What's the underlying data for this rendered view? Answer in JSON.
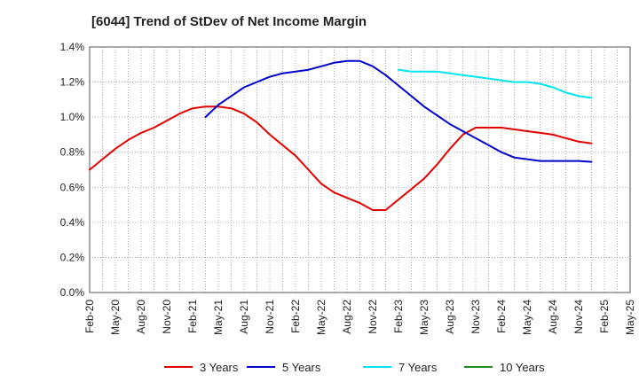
{
  "chart_data": {
    "type": "line",
    "title": "[6044]  Trend of StDev of Net Income Margin",
    "xlabel": "",
    "ylabel": "",
    "ylim": [
      0,
      1.4
    ],
    "yticks": [
      "0.0%",
      "0.2%",
      "0.4%",
      "0.6%",
      "0.8%",
      "1.0%",
      "1.2%",
      "1.4%"
    ],
    "x_tick_labels": [
      "Feb-20",
      "May-20",
      "Aug-20",
      "Nov-20",
      "Feb-21",
      "May-21",
      "Aug-21",
      "Nov-21",
      "Feb-22",
      "May-22",
      "Aug-22",
      "Nov-22",
      "Feb-23",
      "May-23",
      "Aug-23",
      "Nov-23",
      "Feb-24",
      "May-24",
      "Aug-24",
      "Nov-24",
      "Feb-25",
      "May-25"
    ],
    "grid": true,
    "legend_position": "bottom",
    "series": [
      {
        "name": "3 Years",
        "color": "#e00000",
        "values": [
          0.7,
          0.76,
          0.82,
          0.87,
          0.91,
          0.94,
          0.98,
          1.02,
          1.05,
          1.06,
          1.06,
          1.05,
          1.02,
          0.97,
          0.9,
          0.84,
          0.78,
          0.7,
          0.62,
          0.57,
          0.54,
          0.51,
          0.47,
          0.47,
          0.53,
          0.59,
          0.65,
          0.73,
          0.82,
          0.9,
          0.94,
          0.94,
          0.94,
          0.93,
          0.92,
          0.91,
          0.9,
          0.88,
          0.86,
          0.85,
          null,
          null,
          null
        ]
      },
      {
        "name": "5 Years",
        "color": "#0000cc",
        "values": [
          null,
          null,
          null,
          null,
          null,
          null,
          null,
          null,
          null,
          1.0,
          1.07,
          1.12,
          1.17,
          1.2,
          1.23,
          1.25,
          1.26,
          1.27,
          1.29,
          1.31,
          1.32,
          1.32,
          1.29,
          1.24,
          1.18,
          1.12,
          1.06,
          1.01,
          0.96,
          0.92,
          0.88,
          0.84,
          0.8,
          0.77,
          0.76,
          0.75,
          0.75,
          0.75,
          0.75,
          0.745,
          null,
          null,
          null
        ]
      },
      {
        "name": "7 Years",
        "color": "#00e5ee",
        "values": [
          null,
          null,
          null,
          null,
          null,
          null,
          null,
          null,
          null,
          null,
          null,
          null,
          null,
          null,
          null,
          null,
          null,
          null,
          null,
          null,
          null,
          null,
          null,
          null,
          1.27,
          1.26,
          1.26,
          1.26,
          1.25,
          1.24,
          1.23,
          1.22,
          1.21,
          1.2,
          1.2,
          1.19,
          1.17,
          1.14,
          1.12,
          1.11,
          null,
          null,
          null
        ]
      },
      {
        "name": "10 Years",
        "color": "#228b22",
        "values": []
      }
    ]
  }
}
